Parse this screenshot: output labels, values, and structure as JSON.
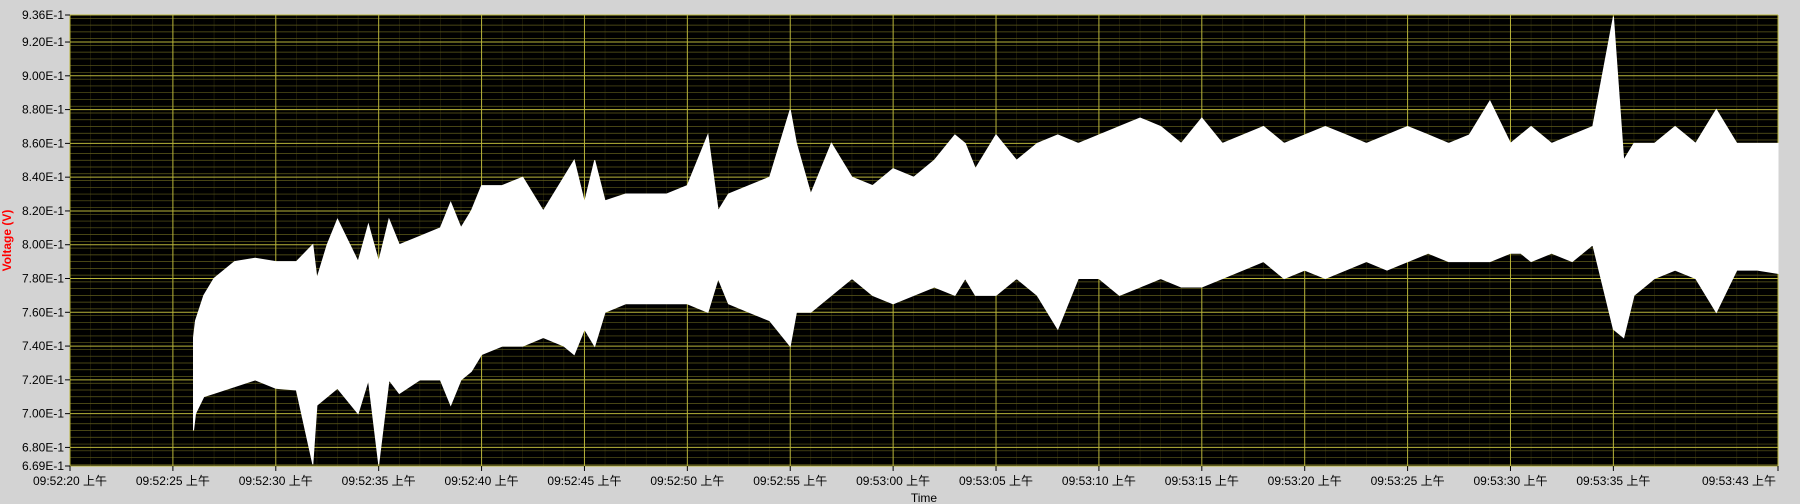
{
  "chart_data": {
    "type": "area",
    "title": "",
    "xlabel": "Time",
    "ylabel": "Voltage (V)",
    "ylabel_color": "#ff0000",
    "plot_background": "#000000",
    "series_color": "#ffffff",
    "major_grid_color": "#b8b43a",
    "minor_grid_color": "#5f5c1c",
    "grid": true,
    "legend": "none",
    "x_unit": "seconds after 09:52:20",
    "xlim": [
      0,
      83
    ],
    "ylim": [
      0.669,
      0.936
    ],
    "x_tick_labels": [
      "09:52:20 上午",
      "09:52:25 上午",
      "09:52:30 上午",
      "09:52:35 上午",
      "09:52:40 上午",
      "09:52:45 上午",
      "09:52:50 上午",
      "09:52:55 上午",
      "09:53:00 上午",
      "09:53:05 上午",
      "09:53:10 上午",
      "09:53:15 上午",
      "09:53:20 上午",
      "09:53:25 上午",
      "09:53:30 上午",
      "09:53:35 上午",
      "09:53:43 上午"
    ],
    "x_tick_values": [
      0,
      5,
      10,
      15,
      20,
      25,
      30,
      35,
      40,
      45,
      50,
      55,
      60,
      65,
      70,
      75,
      83
    ],
    "y_tick_labels": [
      "9.36E-1",
      "9.20E-1",
      "9.00E-1",
      "8.80E-1",
      "8.60E-1",
      "8.40E-1",
      "8.20E-1",
      "8.00E-1",
      "7.80E-1",
      "7.60E-1",
      "7.40E-1",
      "7.20E-1",
      "7.00E-1",
      "6.80E-1",
      "6.69E-1"
    ],
    "y_tick_values": [
      0.936,
      0.92,
      0.9,
      0.88,
      0.86,
      0.84,
      0.82,
      0.8,
      0.78,
      0.76,
      0.74,
      0.72,
      0.7,
      0.68,
      0.669
    ],
    "envelope": {
      "x": [
        6,
        6.1,
        6.5,
        7,
        8,
        9,
        10,
        11,
        11.8,
        12,
        12.5,
        13,
        14,
        14.5,
        15,
        15.5,
        16,
        17,
        18,
        18.5,
        19,
        19.5,
        20,
        21,
        22,
        23,
        24,
        24.5,
        25,
        25.5,
        26,
        27,
        28,
        29,
        30,
        31,
        31.5,
        32,
        33,
        34,
        35,
        35.3,
        36,
        37,
        38,
        39,
        40,
        41,
        42,
        43,
        43.5,
        44,
        45,
        46,
        47,
        48,
        49,
        50,
        51,
        52,
        53,
        54,
        55,
        56,
        57,
        58,
        59,
        60,
        61,
        62,
        63,
        64,
        65,
        66,
        67,
        68,
        69,
        70,
        70.5,
        71,
        72,
        73,
        74,
        75,
        75.5,
        76,
        77,
        78,
        79,
        80,
        81,
        82,
        83
      ],
      "upper": [
        0.745,
        0.755,
        0.77,
        0.78,
        0.79,
        0.792,
        0.79,
        0.79,
        0.8,
        0.78,
        0.8,
        0.815,
        0.79,
        0.812,
        0.79,
        0.815,
        0.8,
        0.805,
        0.81,
        0.825,
        0.81,
        0.82,
        0.835,
        0.835,
        0.84,
        0.82,
        0.84,
        0.85,
        0.825,
        0.85,
        0.826,
        0.83,
        0.83,
        0.83,
        0.835,
        0.865,
        0.82,
        0.83,
        0.835,
        0.84,
        0.88,
        0.86,
        0.83,
        0.86,
        0.84,
        0.835,
        0.845,
        0.84,
        0.85,
        0.865,
        0.86,
        0.845,
        0.865,
        0.85,
        0.86,
        0.865,
        0.86,
        0.865,
        0.87,
        0.875,
        0.87,
        0.86,
        0.875,
        0.86,
        0.865,
        0.87,
        0.86,
        0.865,
        0.87,
        0.865,
        0.86,
        0.865,
        0.87,
        0.865,
        0.86,
        0.865,
        0.885,
        0.86,
        0.865,
        0.87,
        0.86,
        0.865,
        0.87,
        0.935,
        0.85,
        0.86,
        0.86,
        0.87,
        0.86,
        0.88,
        0.86,
        0.86,
        0.86
      ],
      "lower": [
        0.69,
        0.7,
        0.71,
        0.712,
        0.716,
        0.72,
        0.715,
        0.714,
        0.67,
        0.705,
        0.71,
        0.715,
        0.7,
        0.72,
        0.67,
        0.72,
        0.712,
        0.72,
        0.72,
        0.705,
        0.72,
        0.725,
        0.735,
        0.74,
        0.74,
        0.745,
        0.74,
        0.735,
        0.75,
        0.74,
        0.76,
        0.765,
        0.765,
        0.765,
        0.765,
        0.76,
        0.78,
        0.765,
        0.76,
        0.755,
        0.74,
        0.76,
        0.76,
        0.77,
        0.78,
        0.77,
        0.765,
        0.77,
        0.775,
        0.77,
        0.78,
        0.77,
        0.77,
        0.78,
        0.77,
        0.75,
        0.78,
        0.78,
        0.77,
        0.775,
        0.78,
        0.775,
        0.775,
        0.78,
        0.785,
        0.79,
        0.78,
        0.785,
        0.78,
        0.785,
        0.79,
        0.785,
        0.79,
        0.795,
        0.79,
        0.79,
        0.79,
        0.795,
        0.795,
        0.79,
        0.795,
        0.79,
        0.8,
        0.75,
        0.745,
        0.77,
        0.78,
        0.785,
        0.78,
        0.76,
        0.785,
        0.785,
        0.783
      ]
    }
  }
}
